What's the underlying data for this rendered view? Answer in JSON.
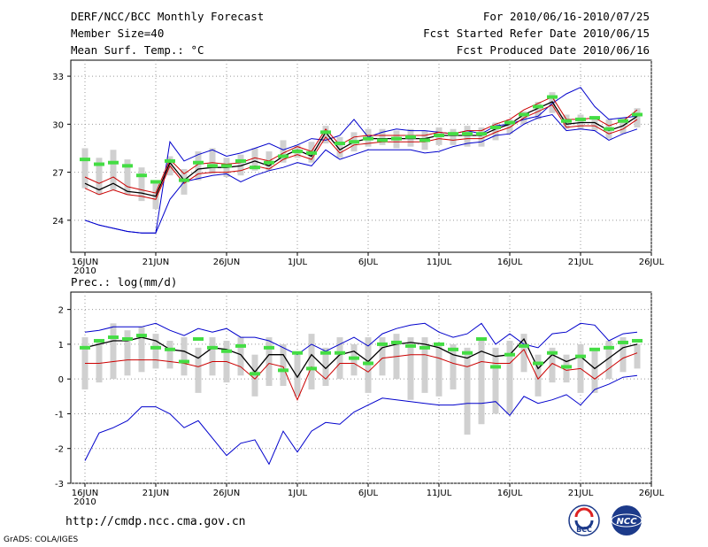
{
  "header": {
    "title": "DERF/NCC/BCC Monthly Forecast",
    "member": "Member Size=40",
    "variable": "Mean Surf. Temp.: °C",
    "period": "For 2010/06/16-2010/07/25",
    "fcst_start": "Fcst Started Refer Date 2010/06/15",
    "fcst_produced": "Fcst Produced Date 2010/06/16"
  },
  "footer": {
    "url": "http://cmdp.ncc.cma.gov.cn",
    "grads": "GrADS: COLA/IGES",
    "logo_bcc": "BCC",
    "logo_ncc": "NCC"
  },
  "colors": {
    "max_line": "#0000cc",
    "min_line": "#cc0000",
    "mean_line": "#000000",
    "obs_bar": "#44dd44",
    "spread_bar": "#d0d0d0"
  },
  "chart_data": [
    {
      "type": "line",
      "title": "Mean Surf. Temp.: °C",
      "xlabel": "",
      "ylabel": "",
      "ylim": [
        22,
        34
      ],
      "yticks": [
        "24",
        "27",
        "30",
        "33"
      ],
      "xticks": [
        "16JUN",
        "21JUN",
        "26JUN",
        "1JUL",
        "6JUL",
        "11JUL",
        "16JUL",
        "21JUL",
        "26JUL"
      ],
      "year_label": "2010",
      "days": 40,
      "series": [
        {
          "name": "ensemble max",
          "values": [
            24.0,
            23.7,
            23.5,
            23.3,
            23.2,
            23.2,
            28.9,
            27.7,
            28.1,
            28.4,
            28.0,
            28.2,
            28.5,
            28.8,
            28.4,
            28.7,
            29.1,
            29.0,
            29.3,
            30.3,
            29.2,
            29.5,
            29.7,
            29.6,
            29.6,
            29.5,
            29.4,
            29.6,
            29.4,
            29.9,
            30.0,
            30.3,
            30.5,
            31.3,
            31.9,
            32.3,
            31.1,
            30.3,
            30.4,
            30.5
          ]
        },
        {
          "name": "upper",
          "values": [
            26.7,
            26.3,
            26.7,
            26.1,
            25.9,
            25.7,
            27.8,
            26.9,
            27.5,
            27.6,
            27.5,
            27.6,
            27.9,
            27.7,
            28.2,
            28.6,
            28.3,
            29.7,
            28.7,
            29.2,
            29.3,
            29.3,
            29.3,
            29.3,
            29.3,
            29.5,
            29.4,
            29.6,
            29.6,
            30.0,
            30.3,
            30.9,
            31.3,
            31.7,
            30.3,
            30.3,
            30.4,
            29.9,
            30.2,
            30.9
          ]
        },
        {
          "name": "ensemble mean",
          "values": [
            26.3,
            25.9,
            26.3,
            25.8,
            25.7,
            25.5,
            27.6,
            26.5,
            27.2,
            27.3,
            27.3,
            27.4,
            27.7,
            27.4,
            28.0,
            28.4,
            28.0,
            29.5,
            28.4,
            28.9,
            29.1,
            29.1,
            29.1,
            29.1,
            29.1,
            29.3,
            29.3,
            29.3,
            29.3,
            29.7,
            30.0,
            30.6,
            31.0,
            31.4,
            30.0,
            30.1,
            30.1,
            29.6,
            29.9,
            30.5
          ]
        },
        {
          "name": "lower",
          "values": [
            26.0,
            25.6,
            25.9,
            25.6,
            25.5,
            25.3,
            27.4,
            26.3,
            26.9,
            27.0,
            27.0,
            27.1,
            27.4,
            27.2,
            27.8,
            28.1,
            27.8,
            29.2,
            28.2,
            28.7,
            28.8,
            28.9,
            28.9,
            28.9,
            28.9,
            29.1,
            29.0,
            29.1,
            29.1,
            29.5,
            29.8,
            30.4,
            30.8,
            31.2,
            29.8,
            29.9,
            29.9,
            29.4,
            29.7,
            30.3
          ]
        },
        {
          "name": "ensemble min",
          "values": [
            24.0,
            23.7,
            23.5,
            23.3,
            23.2,
            23.2,
            25.3,
            26.4,
            26.6,
            26.8,
            26.9,
            26.4,
            26.8,
            27.1,
            27.3,
            27.6,
            27.4,
            28.4,
            27.8,
            28.1,
            28.4,
            28.4,
            28.4,
            28.4,
            28.2,
            28.3,
            28.6,
            28.8,
            28.9,
            29.3,
            29.4,
            30.0,
            30.4,
            30.6,
            29.6,
            29.7,
            29.6,
            29.0,
            29.4,
            29.7
          ]
        },
        {
          "name": "observed / reference",
          "values": [
            27.8,
            27.5,
            27.6,
            27.4,
            26.8,
            26.4,
            27.7,
            26.5,
            27.6,
            27.4,
            27.4,
            27.7,
            27.3,
            27.6,
            28.0,
            28.3,
            28.2,
            29.5,
            28.8,
            28.9,
            29.1,
            29.0,
            29.1,
            29.2,
            29.0,
            29.3,
            29.4,
            29.4,
            29.4,
            29.8,
            30.1,
            30.6,
            31.1,
            31.7,
            30.2,
            30.3,
            30.4,
            29.7,
            30.2,
            30.6
          ]
        }
      ],
      "spread": [
        [
          26.0,
          28.5
        ],
        [
          25.6,
          27.9
        ],
        [
          25.9,
          28.4
        ],
        [
          25.6,
          27.8
        ],
        [
          25.2,
          27.3
        ],
        [
          24.7,
          26.4
        ],
        [
          26.8,
          28.0
        ],
        [
          25.6,
          27.2
        ],
        [
          26.5,
          28.3
        ],
        [
          26.9,
          28.5
        ],
        [
          26.7,
          27.9
        ],
        [
          26.8,
          28.1
        ],
        [
          27.1,
          28.5
        ],
        [
          27.1,
          28.3
        ],
        [
          27.6,
          29.0
        ],
        [
          27.9,
          28.7
        ],
        [
          27.6,
          28.9
        ],
        [
          28.8,
          29.9
        ],
        [
          27.9,
          29.2
        ],
        [
          28.3,
          29.5
        ],
        [
          28.6,
          29.7
        ],
        [
          28.7,
          29.7
        ],
        [
          28.5,
          29.6
        ],
        [
          28.6,
          29.7
        ],
        [
          28.4,
          29.6
        ],
        [
          28.7,
          29.8
        ],
        [
          28.7,
          29.7
        ],
        [
          28.6,
          29.9
        ],
        [
          28.6,
          29.8
        ],
        [
          29.0,
          30.1
        ],
        [
          29.4,
          30.3
        ],
        [
          30.0,
          30.8
        ],
        [
          30.3,
          31.4
        ],
        [
          30.7,
          32.0
        ],
        [
          29.7,
          30.6
        ],
        [
          29.7,
          30.6
        ],
        [
          29.6,
          30.5
        ],
        [
          29.1,
          30.3
        ],
        [
          29.4,
          30.4
        ],
        [
          29.8,
          31.0
        ]
      ]
    },
    {
      "type": "line",
      "title": "Prec.: log(mm/d)",
      "xlabel": "",
      "ylabel": "",
      "ylim": [
        -3,
        2.5
      ],
      "yticks": [
        "-3",
        "-2",
        "-1",
        "0",
        "1",
        "2"
      ],
      "xticks": [
        "16JUN",
        "21JUN",
        "26JUN",
        "1JUL",
        "6JUL",
        "11JUL",
        "16JUL",
        "21JUL",
        "26JUL"
      ],
      "year_label": "2010",
      "days": 40,
      "series": [
        {
          "name": "ensemble max",
          "values": [
            1.35,
            1.4,
            1.5,
            1.5,
            1.5,
            1.6,
            1.4,
            1.25,
            1.45,
            1.35,
            1.45,
            1.2,
            1.2,
            1.1,
            0.9,
            0.7,
            1.0,
            0.8,
            1.0,
            1.2,
            0.95,
            1.3,
            1.45,
            1.55,
            1.6,
            1.35,
            1.2,
            1.3,
            1.6,
            1.0,
            1.3,
            1.0,
            0.9,
            1.3,
            1.35,
            1.6,
            1.55,
            1.1,
            1.3,
            1.35
          ]
        },
        {
          "name": "ensemble mean",
          "values": [
            0.9,
            1.0,
            1.1,
            1.1,
            1.2,
            1.1,
            0.85,
            0.8,
            0.6,
            0.9,
            0.85,
            0.7,
            0.2,
            0.7,
            0.7,
            0.05,
            0.7,
            0.3,
            0.7,
            0.8,
            0.5,
            0.9,
            1.0,
            1.05,
            1.0,
            0.9,
            0.7,
            0.6,
            0.8,
            0.65,
            0.7,
            1.15,
            0.3,
            0.7,
            0.5,
            0.65,
            0.3,
            0.6,
            0.9,
            1.0
          ]
        },
        {
          "name": "lower",
          "values": [
            0.45,
            0.45,
            0.5,
            0.55,
            0.55,
            0.55,
            0.5,
            0.45,
            0.35,
            0.5,
            0.5,
            0.35,
            0.0,
            0.45,
            0.35,
            -0.6,
            0.35,
            0.0,
            0.45,
            0.45,
            0.2,
            0.6,
            0.65,
            0.7,
            0.7,
            0.6,
            0.45,
            0.35,
            0.5,
            0.45,
            0.45,
            0.85,
            0.0,
            0.45,
            0.25,
            0.3,
            0.0,
            0.3,
            0.6,
            0.75
          ]
        },
        {
          "name": "ensemble min",
          "values": [
            -2.35,
            -1.55,
            -1.4,
            -1.2,
            -0.8,
            -0.8,
            -1.0,
            -1.4,
            -1.2,
            -1.7,
            -2.2,
            -1.85,
            -1.75,
            -2.45,
            -1.5,
            -2.1,
            -1.5,
            -1.25,
            -1.3,
            -0.95,
            -0.75,
            -0.55,
            -0.6,
            -0.65,
            -0.7,
            -0.75,
            -0.75,
            -0.7,
            -0.7,
            -0.65,
            -1.05,
            -0.5,
            -0.7,
            -0.6,
            -0.45,
            -0.75,
            -0.3,
            -0.15,
            0.05,
            0.1
          ]
        },
        {
          "name": "observed / reference",
          "values": [
            0.9,
            1.1,
            1.2,
            1.15,
            1.25,
            0.9,
            0.85,
            0.5,
            1.15,
            0.9,
            0.8,
            0.95,
            0.15,
            0.9,
            0.25,
            0.75,
            0.3,
            0.75,
            0.75,
            0.6,
            0.45,
            1.0,
            1.05,
            0.95,
            0.9,
            1.0,
            0.85,
            0.75,
            1.15,
            0.35,
            0.7,
            0.95,
            0.45,
            0.75,
            0.35,
            0.65,
            0.85,
            0.9,
            1.05,
            1.1
          ]
        }
      ],
      "spread": [
        [
          -0.3,
          1.2
        ],
        [
          -0.1,
          1.1
        ],
        [
          0.0,
          1.6
        ],
        [
          0.1,
          1.4
        ],
        [
          0.2,
          1.5
        ],
        [
          0.3,
          1.3
        ],
        [
          0.3,
          1.1
        ],
        [
          0.1,
          1.2
        ],
        [
          -0.4,
          0.9
        ],
        [
          0.1,
          1.2
        ],
        [
          -0.1,
          1.1
        ],
        [
          0.1,
          1.2
        ],
        [
          -0.5,
          0.7
        ],
        [
          -0.2,
          1.2
        ],
        [
          -0.2,
          1.0
        ],
        [
          -0.5,
          0.7
        ],
        [
          -0.3,
          1.3
        ],
        [
          -0.2,
          0.9
        ],
        [
          0.0,
          1.2
        ],
        [
          0.1,
          1.0
        ],
        [
          -0.4,
          1.2
        ],
        [
          0.1,
          1.2
        ],
        [
          0.0,
          1.3
        ],
        [
          -0.6,
          1.2
        ],
        [
          -0.4,
          1.2
        ],
        [
          -0.5,
          1.0
        ],
        [
          -0.3,
          1.0
        ],
        [
          -1.6,
          0.9
        ],
        [
          -1.3,
          1.1
        ],
        [
          -1.0,
          0.9
        ],
        [
          -1.0,
          1.1
        ],
        [
          0.2,
          1.3
        ],
        [
          -0.5,
          0.7
        ],
        [
          -0.1,
          0.9
        ],
        [
          -0.1,
          0.7
        ],
        [
          -0.4,
          1.0
        ],
        [
          -0.4,
          0.8
        ],
        [
          0.0,
          1.1
        ],
        [
          0.2,
          1.2
        ],
        [
          0.3,
          1.0
        ]
      ]
    }
  ]
}
